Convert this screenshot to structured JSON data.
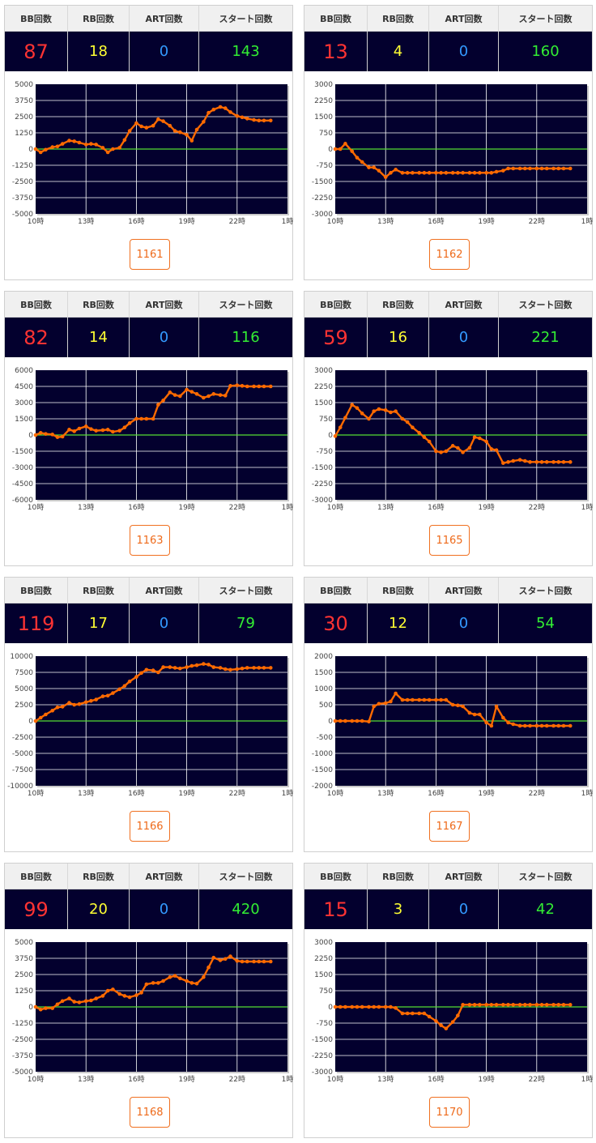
{
  "headers": {
    "bb": "BB回数",
    "rb": "RB回数",
    "art": "ART回数",
    "start": "スタート回数"
  },
  "machines": [
    {
      "id": "1161",
      "bb": "87",
      "rb": "18",
      "art": "0",
      "start": "143"
    },
    {
      "id": "1162",
      "bb": "13",
      "rb": "4",
      "art": "0",
      "start": "160"
    },
    {
      "id": "1163",
      "bb": "82",
      "rb": "14",
      "art": "0",
      "start": "116"
    },
    {
      "id": "1165",
      "bb": "59",
      "rb": "16",
      "art": "0",
      "start": "221"
    },
    {
      "id": "1166",
      "bb": "119",
      "rb": "17",
      "art": "0",
      "start": "79"
    },
    {
      "id": "1167",
      "bb": "30",
      "rb": "12",
      "art": "0",
      "start": "54"
    },
    {
      "id": "1168",
      "bb": "99",
      "rb": "20",
      "art": "0",
      "start": "420"
    },
    {
      "id": "1170",
      "bb": "15",
      "rb": "3",
      "art": "0",
      "start": "42"
    }
  ],
  "colors": {
    "line": "#ff6a00",
    "zero": "#55dd33",
    "plot_bg": "#03002e",
    "grid": "#ffffff",
    "bb": "#ff3333",
    "rb": "#ffff33",
    "art": "#3399ff",
    "start": "#33ee33",
    "button": "#ee6a1a"
  },
  "chart_data": [
    {
      "type": "line",
      "machine": "1161",
      "xlabels": [
        "10時",
        "13時",
        "16時",
        "19時",
        "22時",
        "1時"
      ],
      "xlim": [
        10,
        25
      ],
      "ylim": [
        -5000,
        5000
      ],
      "ytick_step": 1250,
      "grid": true,
      "x": [
        10,
        10.3,
        10.6,
        11,
        11.3,
        11.6,
        12,
        12.3,
        12.6,
        13,
        13.3,
        13.6,
        14,
        14.3,
        14.6,
        15,
        15.3,
        15.6,
        16,
        16.3,
        16.6,
        17,
        17.3,
        17.6,
        18,
        18.3,
        18.6,
        19,
        19.3,
        19.6,
        20,
        20.3,
        20.6,
        21,
        21.3,
        21.6,
        22,
        22.3,
        22.6,
        23,
        23.3,
        23.6,
        24
      ],
      "y": [
        0,
        -250,
        -50,
        150,
        200,
        400,
        650,
        600,
        500,
        350,
        400,
        350,
        100,
        -250,
        0,
        100,
        700,
        1400,
        2000,
        1750,
        1650,
        1800,
        2300,
        2150,
        1800,
        1400,
        1300,
        1100,
        650,
        1500,
        2100,
        2800,
        3050,
        3250,
        3150,
        2850,
        2550,
        2450,
        2350,
        2250,
        2200,
        2200,
        2200
      ]
    },
    {
      "type": "line",
      "machine": "1162",
      "xlabels": [
        "10時",
        "13時",
        "16時",
        "19時",
        "22時",
        "1時"
      ],
      "xlim": [
        10,
        25
      ],
      "ylim": [
        -3000,
        3000
      ],
      "ytick_step": 750,
      "grid": true,
      "x": [
        10,
        10.3,
        10.6,
        11,
        11.3,
        11.6,
        12,
        12.3,
        12.6,
        13,
        13.3,
        13.6,
        14,
        14.3,
        14.6,
        15,
        15.3,
        15.6,
        16,
        16.3,
        16.6,
        17,
        17.3,
        17.6,
        18,
        18.3,
        18.6,
        19,
        19.3,
        19.6,
        20,
        20.3,
        20.6,
        21,
        21.3,
        21.6,
        22,
        22.3,
        22.6,
        23,
        23.3,
        23.6,
        24
      ],
      "y": [
        0,
        0,
        250,
        -100,
        -400,
        -600,
        -850,
        -850,
        -1000,
        -1300,
        -1100,
        -950,
        -1100,
        -1100,
        -1100,
        -1100,
        -1100,
        -1100,
        -1100,
        -1100,
        -1100,
        -1100,
        -1100,
        -1100,
        -1100,
        -1100,
        -1100,
        -1100,
        -1100,
        -1050,
        -1000,
        -900,
        -900,
        -900,
        -900,
        -900,
        -900,
        -900,
        -900,
        -900,
        -900,
        -900,
        -900
      ]
    },
    {
      "type": "line",
      "machine": "1163",
      "xlabels": [
        "10時",
        "13時",
        "16時",
        "19時",
        "22時",
        "1時"
      ],
      "xlim": [
        10,
        25
      ],
      "ylim": [
        -6000,
        6000
      ],
      "ytick_step": 1500,
      "grid": true,
      "x": [
        10,
        10.3,
        10.6,
        11,
        11.3,
        11.6,
        12,
        12.3,
        12.6,
        13,
        13.3,
        13.6,
        14,
        14.3,
        14.6,
        15,
        15.3,
        15.6,
        16,
        16.3,
        16.6,
        17,
        17.3,
        17.6,
        18,
        18.3,
        18.6,
        19,
        19.3,
        19.6,
        20,
        20.3,
        20.6,
        21,
        21.3,
        21.6,
        22,
        22.3,
        22.6,
        23,
        23.3,
        23.6,
        24
      ],
      "y": [
        0,
        200,
        100,
        50,
        -200,
        -150,
        500,
        350,
        600,
        800,
        550,
        400,
        450,
        500,
        300,
        400,
        700,
        1100,
        1500,
        1500,
        1500,
        1500,
        2800,
        3200,
        3950,
        3700,
        3600,
        4200,
        4000,
        3800,
        3450,
        3600,
        3800,
        3700,
        3650,
        4550,
        4600,
        4550,
        4500,
        4500,
        4500,
        4500,
        4500
      ]
    },
    {
      "type": "line",
      "machine": "1165",
      "xlabels": [
        "10時",
        "13時",
        "16時",
        "19時",
        "22時",
        "1時"
      ],
      "xlim": [
        10,
        25
      ],
      "ylim": [
        -3000,
        3000
      ],
      "ytick_step": 750,
      "grid": true,
      "x": [
        10,
        10.3,
        10.6,
        11,
        11.3,
        11.6,
        12,
        12.3,
        12.6,
        13,
        13.3,
        13.6,
        14,
        14.3,
        14.6,
        15,
        15.3,
        15.6,
        16,
        16.3,
        16.6,
        17,
        17.3,
        17.6,
        18,
        18.3,
        18.6,
        19,
        19.3,
        19.6,
        20,
        20.3,
        20.6,
        21,
        21.3,
        21.6,
        22,
        22.3,
        22.6,
        23,
        23.3,
        23.6,
        24
      ],
      "y": [
        -50,
        350,
        800,
        1400,
        1250,
        1000,
        750,
        1100,
        1200,
        1150,
        1050,
        1100,
        750,
        600,
        350,
        100,
        -100,
        -300,
        -750,
        -800,
        -750,
        -500,
        -600,
        -800,
        -600,
        -100,
        -150,
        -300,
        -650,
        -700,
        -1300,
        -1250,
        -1200,
        -1150,
        -1200,
        -1250,
        -1250,
        -1250,
        -1250,
        -1250,
        -1250,
        -1250,
        -1250
      ]
    },
    {
      "type": "line",
      "machine": "1166",
      "xlabels": [
        "10時",
        "13時",
        "16時",
        "19時",
        "22時",
        "1時"
      ],
      "xlim": [
        10,
        25
      ],
      "ylim": [
        -10000,
        10000
      ],
      "ytick_step": 2500,
      "grid": true,
      "x": [
        10,
        10.3,
        10.6,
        11,
        11.3,
        11.6,
        12,
        12.3,
        12.6,
        13,
        13.3,
        13.6,
        14,
        14.3,
        14.6,
        15,
        15.3,
        15.6,
        16,
        16.3,
        16.6,
        17,
        17.3,
        17.6,
        18,
        18.3,
        18.6,
        19,
        19.3,
        19.6,
        20,
        20.3,
        20.6,
        21,
        21.3,
        21.6,
        22,
        22.3,
        22.6,
        23,
        23.3,
        23.6,
        24
      ],
      "y": [
        0,
        500,
        1000,
        1600,
        2100,
        2200,
        2800,
        2500,
        2600,
        2900,
        3100,
        3300,
        3800,
        3900,
        4300,
        4900,
        5400,
        6100,
        6800,
        7400,
        7900,
        7800,
        7500,
        8300,
        8300,
        8200,
        8100,
        8300,
        8500,
        8600,
        8800,
        8700,
        8300,
        8200,
        8000,
        7900,
        8000,
        8100,
        8200,
        8200,
        8200,
        8200,
        8200
      ]
    },
    {
      "type": "line",
      "machine": "1167",
      "xlabels": [
        "10時",
        "13時",
        "16時",
        "19時",
        "22時",
        "1時"
      ],
      "xlim": [
        10,
        25
      ],
      "ylim": [
        -2000,
        2000
      ],
      "ytick_step": 500,
      "grid": true,
      "x": [
        10,
        10.3,
        10.6,
        11,
        11.3,
        11.6,
        12,
        12.3,
        12.6,
        13,
        13.3,
        13.6,
        14,
        14.3,
        14.6,
        15,
        15.3,
        15.6,
        16,
        16.3,
        16.6,
        17,
        17.3,
        17.6,
        18,
        18.3,
        18.6,
        19,
        19.3,
        19.6,
        20,
        20.3,
        20.6,
        21,
        21.3,
        21.6,
        22,
        22.3,
        22.6,
        23,
        23.3,
        23.6,
        24
      ],
      "y": [
        0,
        0,
        0,
        0,
        0,
        0,
        -20,
        450,
        530,
        550,
        600,
        850,
        650,
        650,
        650,
        650,
        650,
        650,
        650,
        650,
        650,
        500,
        480,
        450,
        250,
        200,
        200,
        -50,
        -150,
        450,
        100,
        -50,
        -100,
        -150,
        -150,
        -150,
        -150,
        -150,
        -150,
        -150,
        -150,
        -150,
        -150
      ]
    },
    {
      "type": "line",
      "machine": "1168",
      "xlabels": [
        "10時",
        "13時",
        "16時",
        "19時",
        "22時",
        "1時"
      ],
      "xlim": [
        10,
        25
      ],
      "ylim": [
        -5000,
        5000
      ],
      "ytick_step": 1250,
      "grid": true,
      "x": [
        10,
        10.3,
        10.6,
        11,
        11.3,
        11.6,
        12,
        12.3,
        12.6,
        13,
        13.3,
        13.6,
        14,
        14.3,
        14.6,
        15,
        15.3,
        15.6,
        16,
        16.3,
        16.6,
        17,
        17.3,
        17.6,
        18,
        18.3,
        18.6,
        19,
        19.3,
        19.6,
        20,
        20.3,
        20.6,
        21,
        21.3,
        21.6,
        22,
        22.3,
        22.6,
        23,
        23.3,
        23.6,
        24
      ],
      "y": [
        0,
        -200,
        -100,
        -100,
        200,
        450,
        650,
        400,
        350,
        450,
        500,
        650,
        850,
        1250,
        1350,
        1000,
        850,
        750,
        900,
        1100,
        1750,
        1850,
        1850,
        2000,
        2300,
        2400,
        2200,
        2000,
        1850,
        1800,
        2300,
        3050,
        3800,
        3600,
        3700,
        3900,
        3550,
        3500,
        3500,
        3500,
        3500,
        3500,
        3500
      ]
    },
    {
      "type": "line",
      "machine": "1170",
      "xlabels": [
        "10時",
        "13時",
        "16時",
        "19時",
        "22時",
        "1時"
      ],
      "xlim": [
        10,
        25
      ],
      "ylim": [
        -3000,
        3000
      ],
      "ytick_step": 750,
      "grid": true,
      "x": [
        10,
        10.3,
        10.6,
        11,
        11.3,
        11.6,
        12,
        12.3,
        12.6,
        13,
        13.3,
        13.6,
        14,
        14.3,
        14.6,
        15,
        15.3,
        15.6,
        16,
        16.3,
        16.6,
        17,
        17.3,
        17.6,
        18,
        18.3,
        18.6,
        19,
        19.3,
        19.6,
        20,
        20.3,
        20.6,
        21,
        21.3,
        21.6,
        22,
        22.3,
        22.6,
        23,
        23.3,
        23.6,
        24
      ],
      "y": [
        0,
        0,
        0,
        0,
        0,
        0,
        0,
        0,
        0,
        0,
        0,
        -50,
        -300,
        -300,
        -300,
        -300,
        -300,
        -450,
        -650,
        -850,
        -1000,
        -700,
        -400,
        100,
        100,
        100,
        100,
        100,
        100,
        100,
        100,
        100,
        100,
        100,
        100,
        100,
        100,
        100,
        100,
        100,
        100,
        100,
        100
      ]
    }
  ]
}
